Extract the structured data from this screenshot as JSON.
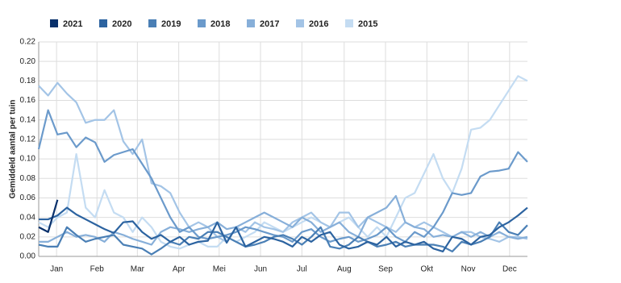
{
  "chart_data": {
    "type": "line",
    "y_label": "Gemiddeld aantal per tuin",
    "x": [
      1,
      2,
      3,
      4,
      5,
      6,
      7,
      8,
      9,
      10,
      11,
      12,
      13,
      14,
      15,
      16,
      17,
      18,
      19,
      20,
      21,
      22,
      23,
      24,
      25,
      26,
      27,
      28,
      29,
      30,
      31,
      32,
      33,
      34,
      35,
      36,
      37,
      38,
      39,
      40,
      41,
      42,
      43,
      44,
      45,
      46,
      47,
      48,
      49,
      50,
      51,
      52,
      53
    ],
    "xlim": [
      1,
      53
    ],
    "xticks": [
      {
        "value": 2.9,
        "label": "Jan"
      },
      {
        "value": 7.2,
        "label": "Feb"
      },
      {
        "value": 11.5,
        "label": "Mar"
      },
      {
        "value": 15.9,
        "label": "Apr"
      },
      {
        "value": 20.2,
        "label": "Mei"
      },
      {
        "value": 24.6,
        "label": "Jun"
      },
      {
        "value": 29,
        "label": "Jul"
      },
      {
        "value": 33.5,
        "label": "Aug"
      },
      {
        "value": 37.9,
        "label": "Sep"
      },
      {
        "value": 42.3,
        "label": "Okt"
      },
      {
        "value": 46.7,
        "label": "Nov"
      },
      {
        "value": 51.1,
        "label": "Dec"
      }
    ],
    "ylim": [
      0,
      0.22
    ],
    "yticks": [
      {
        "value": 0,
        "label": "0.00"
      },
      0.02,
      0.04,
      0.06,
      0.08,
      {
        "value": 0.1,
        "label": "0.10"
      },
      0.12,
      0.14,
      0.16,
      0.18,
      {
        "value": 0.2,
        "label": "0.20"
      },
      0.22
    ],
    "grid": true,
    "legend": "top",
    "series": [
      {
        "name": "2021",
        "color": "#08306b",
        "values": [
          0.03,
          0.025,
          0.058,
          null,
          null,
          null,
          null,
          null,
          null,
          null,
          null,
          null,
          null,
          null,
          null,
          null,
          null,
          null,
          null,
          null,
          null,
          null,
          null,
          null,
          null,
          null,
          null,
          null,
          null,
          null,
          null,
          null,
          null,
          null,
          null,
          null,
          null,
          null,
          null,
          null,
          null,
          null,
          null,
          null,
          null,
          null,
          null,
          null,
          null,
          null,
          null,
          null,
          null
        ]
      },
      {
        "name": "2020",
        "color": "#2c63a0",
        "values": [
          0.038,
          0.038,
          0.042,
          0.05,
          0.043,
          0.038,
          0.033,
          0.028,
          0.024,
          0.035,
          0.036,
          0.025,
          0.018,
          0.022,
          0.015,
          0.02,
          0.012,
          0.015,
          0.016,
          0.035,
          0.014,
          0.03,
          0.01,
          0.015,
          0.02,
          0.018,
          0.015,
          0.01,
          0.02,
          0.015,
          0.022,
          0.025,
          0.012,
          0.008,
          0.01,
          0.015,
          0.012,
          0.02,
          0.01,
          0.015,
          0.012,
          0.015,
          0.008,
          0.005,
          0.02,
          0.018,
          0.012,
          0.02,
          0.022,
          0.03,
          0.035,
          0.042,
          0.05
        ]
      },
      {
        "name": "2019",
        "color": "#4a7fb5",
        "values": [
          0.012,
          0.01,
          0.01,
          0.03,
          0.022,
          0.015,
          0.018,
          0.02,
          0.022,
          0.012,
          0.01,
          0.008,
          0.002,
          0.008,
          0.015,
          0.012,
          0.02,
          0.018,
          0.025,
          0.025,
          0.02,
          0.015,
          0.01,
          0.012,
          0.015,
          0.02,
          0.022,
          0.018,
          0.012,
          0.02,
          0.03,
          0.01,
          0.008,
          0.012,
          0.02,
          0.015,
          0.01,
          0.012,
          0.015,
          0.01,
          0.012,
          0.012,
          0.012,
          0.01,
          0.005,
          0.015,
          0.012,
          0.015,
          0.02,
          0.035,
          0.025,
          0.022,
          0.032
        ]
      },
      {
        "name": "2018",
        "color": "#6b9acb",
        "values": [
          0.11,
          0.15,
          0.125,
          0.127,
          0.112,
          0.122,
          0.117,
          0.097,
          0.104,
          0.107,
          0.11,
          0.095,
          0.08,
          0.06,
          0.04,
          0.025,
          0.03,
          0.02,
          0.018,
          0.02,
          0.022,
          0.025,
          0.03,
          0.028,
          0.025,
          0.022,
          0.02,
          0.015,
          0.025,
          0.028,
          0.02,
          0.015,
          0.018,
          0.02,
          0.015,
          0.018,
          0.022,
          0.03,
          0.02,
          0.015,
          0.025,
          0.02,
          0.03,
          0.045,
          0.065,
          0.063,
          0.065,
          0.082,
          0.087,
          0.088,
          0.09,
          0.107,
          0.097
        ]
      },
      {
        "name": "2017",
        "color": "#87afd9",
        "values": [
          0.015,
          0.015,
          0.02,
          0.025,
          0.02,
          0.022,
          0.02,
          0.015,
          0.025,
          0.022,
          0.018,
          0.015,
          0.012,
          0.025,
          0.03,
          0.028,
          0.025,
          0.028,
          0.03,
          0.035,
          0.028,
          0.03,
          0.035,
          0.04,
          0.045,
          0.04,
          0.035,
          0.03,
          0.04,
          0.035,
          0.025,
          0.03,
          0.035,
          0.025,
          0.02,
          0.04,
          0.045,
          0.05,
          0.062,
          0.035,
          0.03,
          0.028,
          0.02,
          0.022,
          0.02,
          0.025,
          0.02,
          0.025,
          0.02,
          0.025,
          0.02,
          0.018,
          0.02
        ]
      },
      {
        "name": "2016",
        "color": "#a3c4e6",
        "values": [
          0.175,
          0.165,
          0.178,
          0.167,
          0.158,
          0.137,
          0.14,
          0.14,
          0.15,
          0.118,
          0.105,
          0.12,
          0.075,
          0.072,
          0.065,
          0.045,
          0.03,
          0.035,
          0.03,
          0.02,
          0.015,
          0.03,
          0.025,
          0.035,
          0.03,
          0.028,
          0.025,
          0.035,
          0.04,
          0.045,
          0.035,
          0.03,
          0.045,
          0.045,
          0.03,
          0.04,
          0.035,
          0.03,
          0.025,
          0.035,
          0.03,
          0.035,
          0.03,
          0.025,
          0.02,
          0.025,
          0.025,
          0.02,
          0.018,
          0.015,
          0.02,
          0.02,
          0.018
        ]
      },
      {
        "name": "2015",
        "color": "#c4dcf2",
        "values": [
          0.035,
          0.03,
          0.04,
          0.045,
          0.105,
          0.05,
          0.04,
          0.068,
          0.045,
          0.04,
          0.025,
          0.04,
          0.03,
          0.015,
          0.01,
          0.008,
          0.012,
          0.015,
          0.01,
          0.01,
          0.02,
          0.015,
          0.02,
          0.025,
          0.035,
          0.03,
          0.025,
          0.03,
          0.035,
          0.04,
          0.035,
          0.03,
          0.035,
          0.04,
          0.03,
          0.02,
          0.03,
          0.02,
          0.04,
          0.06,
          0.065,
          0.085,
          0.105,
          0.08,
          0.065,
          0.09,
          0.13,
          0.132,
          0.14,
          0.155,
          0.17,
          0.185,
          0.18
        ]
      }
    ]
  }
}
